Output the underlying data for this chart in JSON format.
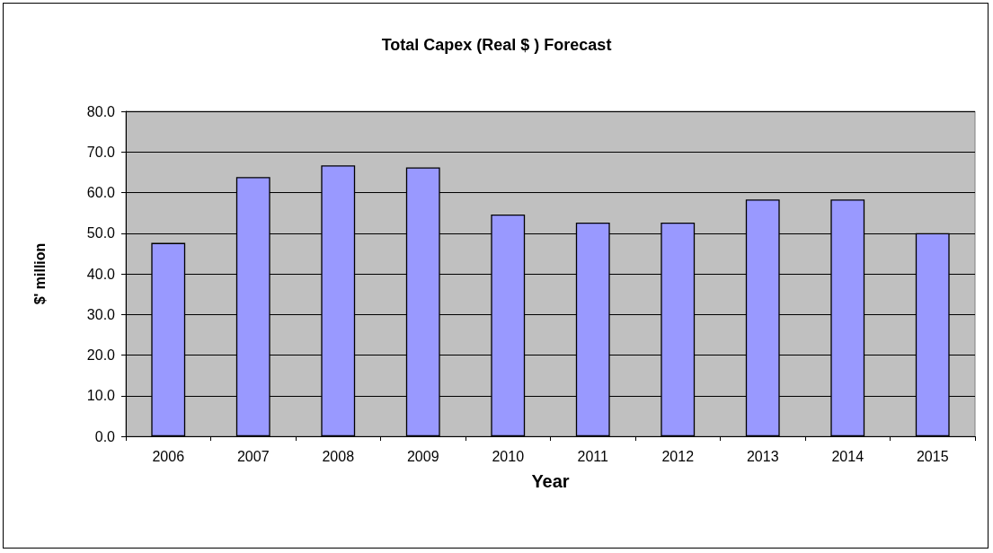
{
  "chart_data": {
    "type": "bar",
    "title": "Total Capex (Real $ ) Forecast",
    "xlabel": "Year",
    "ylabel": "$' million",
    "categories": [
      "2006",
      "2007",
      "2008",
      "2009",
      "2010",
      "2011",
      "2012",
      "2013",
      "2014",
      "2015"
    ],
    "values": [
      47.6,
      63.8,
      66.7,
      66.2,
      54.6,
      52.6,
      52.6,
      58.3,
      58.3,
      50.0
    ],
    "color": "#9999ff",
    "ylim": [
      0,
      80
    ],
    "yticks": [
      {
        "value": 0,
        "label": "0.0"
      },
      {
        "value": 10,
        "label": "10.0"
      },
      {
        "value": 20,
        "label": "20.0"
      },
      {
        "value": 30,
        "label": "30.0"
      },
      {
        "value": 40,
        "label": "40.0"
      },
      {
        "value": 50,
        "label": "50.0"
      },
      {
        "value": 60,
        "label": "60.0"
      },
      {
        "value": 70,
        "label": "70.0"
      },
      {
        "value": 80,
        "label": "80.0"
      }
    ],
    "grid": "y"
  }
}
